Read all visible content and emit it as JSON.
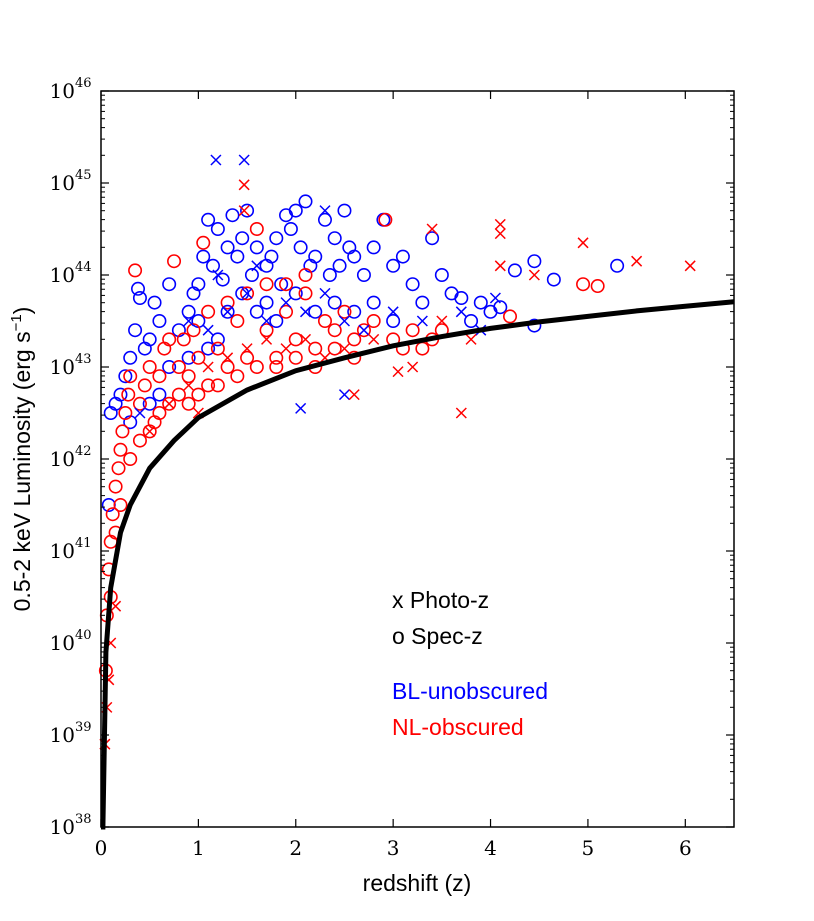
{
  "chart_data": {
    "type": "scatter",
    "xlabel": "redshift (z)",
    "ylabel": "0.5-2 keV Luminosity (erg s",
    "ylabel_sup": "−1",
    "ylabel_close": ")",
    "xlim": [
      0,
      6.5
    ],
    "ylim": [
      1e+38,
      1e+46
    ],
    "yscale": "log",
    "grid": false,
    "x_ticks": [
      0,
      1,
      2,
      3,
      4,
      5,
      6
    ],
    "x_tick_labels": [
      "0",
      "1",
      "2",
      "3",
      "4",
      "5",
      "6"
    ],
    "y_ticks": [
      38,
      39,
      40,
      41,
      42,
      43,
      44,
      45,
      46
    ],
    "y_tick_base": "10",
    "y_tick_exponents": [
      "38",
      "39",
      "40",
      "41",
      "42",
      "43",
      "44",
      "45",
      "46"
    ],
    "annotations": [
      {
        "text": "x Photo-z",
        "color": "#000000"
      },
      {
        "text": "o Spec-z",
        "color": "#000000"
      },
      {
        "text": "BL-unobscured",
        "color": "#0000ff"
      },
      {
        "text": "NL-obscured",
        "color": "#ff0000"
      }
    ],
    "colors": {
      "BL": "#0000ff",
      "NL": "#ff0000",
      "limit": "#000000"
    },
    "limit_curve": {
      "description": "flux limit",
      "x": [
        0.02,
        0.05,
        0.1,
        0.2,
        0.3,
        0.5,
        0.75,
        1.0,
        1.5,
        2.0,
        2.5,
        3.0,
        3.5,
        4.0,
        4.5,
        5.0,
        5.5,
        6.0,
        6.5
      ],
      "y_log": [
        38.0,
        39.9,
        40.6,
        41.2,
        41.5,
        41.9,
        42.2,
        42.45,
        42.75,
        42.96,
        43.1,
        43.23,
        43.33,
        43.42,
        43.49,
        43.55,
        43.61,
        43.66,
        43.71
      ]
    },
    "series": [
      {
        "name": "BL-unobscured",
        "marker": "circle",
        "points": [
          [
            0.08,
            41.5
          ],
          [
            0.1,
            42.5
          ],
          [
            0.15,
            42.6
          ],
          [
            0.2,
            42.7
          ],
          [
            0.3,
            43.1
          ],
          [
            0.35,
            43.4
          ],
          [
            0.38,
            43.85
          ],
          [
            0.4,
            43.75
          ],
          [
            0.45,
            43.2
          ],
          [
            0.5,
            43.3
          ],
          [
            0.55,
            43.7
          ],
          [
            0.6,
            43.5
          ],
          [
            0.7,
            43.9
          ],
          [
            0.8,
            43.4
          ],
          [
            0.9,
            43.6
          ],
          [
            0.95,
            43.8
          ],
          [
            1.0,
            43.9
          ],
          [
            1.05,
            44.2
          ],
          [
            1.1,
            44.6
          ],
          [
            1.15,
            44.1
          ],
          [
            1.2,
            44.5
          ],
          [
            1.25,
            43.95
          ],
          [
            1.3,
            44.3
          ],
          [
            1.35,
            44.65
          ],
          [
            1.4,
            44.2
          ],
          [
            1.45,
            44.4
          ],
          [
            1.5,
            44.7
          ],
          [
            1.55,
            44.0
          ],
          [
            1.6,
            44.3
          ],
          [
            1.7,
            44.1
          ],
          [
            1.75,
            44.2
          ],
          [
            1.8,
            44.4
          ],
          [
            1.85,
            43.9
          ],
          [
            1.9,
            44.65
          ],
          [
            1.95,
            44.5
          ],
          [
            2.0,
            44.7
          ],
          [
            2.05,
            44.3
          ],
          [
            2.1,
            44.8
          ],
          [
            2.15,
            44.1
          ],
          [
            2.2,
            44.2
          ],
          [
            2.3,
            44.6
          ],
          [
            2.35,
            44.0
          ],
          [
            2.4,
            44.4
          ],
          [
            2.45,
            44.1
          ],
          [
            2.5,
            44.7
          ],
          [
            2.55,
            44.3
          ],
          [
            2.6,
            44.2
          ],
          [
            2.7,
            44.0
          ],
          [
            2.8,
            44.3
          ],
          [
            2.9,
            44.6
          ],
          [
            3.0,
            44.1
          ],
          [
            3.1,
            44.2
          ],
          [
            3.2,
            43.9
          ],
          [
            3.3,
            43.7
          ],
          [
            3.4,
            44.4
          ],
          [
            3.5,
            44.0
          ],
          [
            3.6,
            43.8
          ],
          [
            3.7,
            43.75
          ],
          [
            3.8,
            43.5
          ],
          [
            3.9,
            43.7
          ],
          [
            4.0,
            43.6
          ],
          [
            4.1,
            43.65
          ],
          [
            4.25,
            44.05
          ],
          [
            4.45,
            44.15
          ],
          [
            4.45,
            43.45
          ],
          [
            4.65,
            43.95
          ],
          [
            5.3,
            44.1
          ],
          [
            1.0,
            43.5
          ],
          [
            1.2,
            43.3
          ],
          [
            1.3,
            43.6
          ],
          [
            1.45,
            43.8
          ],
          [
            1.6,
            43.6
          ],
          [
            1.7,
            43.7
          ],
          [
            1.8,
            43.5
          ],
          [
            2.0,
            43.8
          ],
          [
            2.2,
            43.6
          ],
          [
            2.4,
            43.7
          ],
          [
            2.6,
            43.6
          ],
          [
            2.8,
            43.7
          ],
          [
            3.0,
            43.5
          ],
          [
            0.7,
            43.0
          ],
          [
            0.9,
            43.1
          ],
          [
            1.1,
            43.2
          ],
          [
            0.6,
            42.7
          ],
          [
            0.5,
            42.6
          ],
          [
            0.3,
            42.4
          ],
          [
            0.25,
            42.9
          ]
        ]
      },
      {
        "name": "NL-obscured",
        "marker": "circle",
        "points": [
          [
            0.05,
            39.7
          ],
          [
            0.06,
            40.3
          ],
          [
            0.08,
            40.8
          ],
          [
            0.1,
            41.1
          ],
          [
            0.12,
            41.4
          ],
          [
            0.15,
            41.7
          ],
          [
            0.18,
            41.9
          ],
          [
            0.2,
            42.1
          ],
          [
            0.22,
            42.3
          ],
          [
            0.25,
            42.5
          ],
          [
            0.28,
            42.7
          ],
          [
            0.3,
            42.9
          ],
          [
            0.35,
            44.05
          ],
          [
            0.4,
            42.6
          ],
          [
            0.45,
            42.8
          ],
          [
            0.5,
            43.0
          ],
          [
            0.55,
            42.4
          ],
          [
            0.6,
            42.9
          ],
          [
            0.65,
            43.2
          ],
          [
            0.7,
            43.3
          ],
          [
            0.75,
            44.15
          ],
          [
            0.8,
            43.0
          ],
          [
            0.85,
            43.3
          ],
          [
            0.9,
            42.9
          ],
          [
            0.95,
            43.4
          ],
          [
            1.0,
            43.1
          ],
          [
            1.05,
            44.35
          ],
          [
            1.1,
            42.8
          ],
          [
            1.2,
            43.2
          ],
          [
            1.3,
            43.0
          ],
          [
            1.4,
            43.5
          ],
          [
            1.5,
            43.1
          ],
          [
            1.6,
            44.5
          ],
          [
            1.7,
            43.4
          ],
          [
            1.8,
            43.0
          ],
          [
            1.9,
            43.6
          ],
          [
            2.0,
            43.3
          ],
          [
            2.1,
            43.8
          ],
          [
            2.2,
            43.2
          ],
          [
            2.3,
            43.5
          ],
          [
            2.4,
            43.4
          ],
          [
            2.5,
            43.6
          ],
          [
            2.6,
            43.3
          ],
          [
            2.7,
            43.4
          ],
          [
            2.8,
            43.5
          ],
          [
            2.92,
            44.6
          ],
          [
            3.0,
            43.3
          ],
          [
            3.1,
            43.2
          ],
          [
            3.2,
            43.4
          ],
          [
            3.3,
            43.2
          ],
          [
            3.4,
            43.3
          ],
          [
            3.5,
            43.4
          ],
          [
            4.2,
            43.55
          ],
          [
            4.95,
            43.9
          ],
          [
            5.1,
            43.88
          ],
          [
            0.1,
            40.5
          ],
          [
            0.15,
            41.2
          ],
          [
            0.2,
            41.5
          ],
          [
            0.3,
            42.0
          ],
          [
            0.4,
            42.2
          ],
          [
            0.5,
            42.3
          ],
          [
            0.6,
            42.5
          ],
          [
            0.7,
            42.6
          ],
          [
            0.8,
            42.7
          ],
          [
            0.9,
            42.6
          ],
          [
            1.0,
            42.7
          ],
          [
            1.2,
            42.8
          ],
          [
            1.4,
            42.9
          ],
          [
            1.6,
            43.0
          ],
          [
            1.8,
            43.1
          ],
          [
            2.0,
            43.1
          ],
          [
            2.2,
            43.0
          ],
          [
            2.4,
            43.2
          ],
          [
            2.6,
            43.1
          ],
          [
            1.1,
            43.6
          ],
          [
            1.3,
            43.7
          ],
          [
            1.5,
            43.8
          ],
          [
            1.7,
            43.9
          ],
          [
            1.9,
            43.9
          ],
          [
            2.1,
            44.0
          ]
        ]
      },
      {
        "name": "BL-unobscured",
        "marker": "x",
        "points": [
          [
            1.18,
            45.25
          ],
          [
            1.47,
            45.25
          ],
          [
            0.9,
            43.5
          ],
          [
            1.1,
            43.4
          ],
          [
            1.3,
            43.6
          ],
          [
            1.5,
            43.8
          ],
          [
            1.7,
            43.5
          ],
          [
            1.9,
            43.7
          ],
          [
            2.1,
            43.6
          ],
          [
            2.3,
            43.8
          ],
          [
            2.5,
            43.5
          ],
          [
            2.7,
            43.4
          ],
          [
            3.0,
            43.6
          ],
          [
            3.3,
            43.5
          ],
          [
            3.7,
            43.6
          ],
          [
            3.9,
            43.4
          ],
          [
            4.05,
            43.75
          ],
          [
            2.05,
            42.55
          ],
          [
            2.5,
            42.7
          ],
          [
            2.3,
            44.7
          ],
          [
            1.2,
            44.0
          ],
          [
            1.6,
            44.1
          ],
          [
            0.4,
            42.5
          ]
        ]
      },
      {
        "name": "NL-obscured",
        "marker": "x",
        "points": [
          [
            0.04,
            38.9
          ],
          [
            0.06,
            39.3
          ],
          [
            0.08,
            39.6
          ],
          [
            0.1,
            40.0
          ],
          [
            0.15,
            40.4
          ],
          [
            1.47,
            44.98
          ],
          [
            1.47,
            44.7
          ],
          [
            0.5,
            42.3
          ],
          [
            0.7,
            42.6
          ],
          [
            0.9,
            42.8
          ],
          [
            1.1,
            43.0
          ],
          [
            1.3,
            43.1
          ],
          [
            1.5,
            43.2
          ],
          [
            1.7,
            43.3
          ],
          [
            1.9,
            43.2
          ],
          [
            2.1,
            43.3
          ],
          [
            2.3,
            43.1
          ],
          [
            2.5,
            43.2
          ],
          [
            2.6,
            42.7
          ],
          [
            3.05,
            42.95
          ],
          [
            3.2,
            43.0
          ],
          [
            3.4,
            44.5
          ],
          [
            3.5,
            43.5
          ],
          [
            3.7,
            42.5
          ],
          [
            3.8,
            43.3
          ],
          [
            4.1,
            44.55
          ],
          [
            4.1,
            44.45
          ],
          [
            4.1,
            44.1
          ],
          [
            4.45,
            44.0
          ],
          [
            4.95,
            44.35
          ],
          [
            5.5,
            44.15
          ],
          [
            6.05,
            44.1
          ],
          [
            2.8,
            43.3
          ],
          [
            1.0,
            42.5
          ]
        ]
      }
    ]
  }
}
